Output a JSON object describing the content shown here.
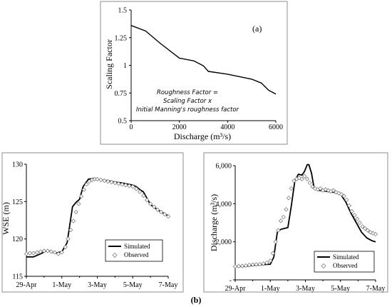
{
  "panel_b_label": "(b)",
  "chart_data": [
    {
      "id": "a",
      "type": "line",
      "panel_label": "(a)",
      "xlabel": "Discharge (m³/s)",
      "ylabel": "Scaling Factor",
      "xlim": [
        0,
        6000
      ],
      "ylim": [
        0.5,
        1.5
      ],
      "xticks": [
        0,
        2000,
        4000,
        6000
      ],
      "xtick_labels": [
        "0",
        "2000",
        "4000",
        "6000"
      ],
      "yticks": [
        0.5,
        0.75,
        1,
        1.25,
        1.5
      ],
      "ytick_labels": [
        "0.5",
        "0.75",
        "1",
        "1.25",
        "1.5"
      ],
      "annotation": [
        "Roughness Factor =",
        "Scaling Factor  x",
        "Initial Manning's roughness factor"
      ],
      "line_color": "#000000",
      "series": [
        {
          "x": [
            0,
            600,
            1200,
            2000,
            2600,
            3000,
            3200,
            4000,
            5000,
            5400,
            5700,
            6000
          ],
          "y": [
            1.36,
            1.31,
            1.2,
            1.065,
            1.04,
            0.995,
            0.945,
            0.92,
            0.875,
            0.84,
            0.775,
            0.74
          ]
        }
      ]
    },
    {
      "id": "b1",
      "type": "line",
      "ylabel": "WSE (m)",
      "xlim": [
        0,
        8
      ],
      "ylim": [
        115,
        130
      ],
      "xticks": [
        0,
        2,
        4,
        6,
        8
      ],
      "xtick_labels": [
        "29-Apr",
        "1-May",
        "3-May",
        "5-May",
        "7-May"
      ],
      "yticks": [
        115,
        120,
        125,
        130
      ],
      "ytick_labels": [
        "115",
        "120",
        "125",
        "130"
      ],
      "legend": [
        "Simulated",
        "Observed"
      ],
      "legend_position": "bottom-right",
      "series": [
        {
          "name": "Simulated",
          "style": "line",
          "color": "#000000",
          "x": [
            0,
            0.4,
            0.8,
            1.2,
            1.6,
            2.0,
            2.3,
            2.6,
            2.8,
            3.0,
            3.2,
            3.5,
            3.8,
            4.2,
            4.6,
            5.0,
            5.4,
            5.8,
            6.0,
            6.2,
            6.4,
            6.6,
            7.0,
            7.4,
            7.7,
            8.0
          ],
          "y": [
            117.6,
            117.6,
            118.0,
            118.5,
            118.1,
            118.3,
            119.5,
            124.3,
            124.9,
            125.3,
            127.0,
            128.0,
            128.1,
            127.9,
            127.8,
            127.6,
            127.5,
            127.3,
            127.2,
            127.0,
            126.6,
            126.3,
            124.6,
            123.9,
            123.5,
            123.1
          ]
        },
        {
          "name": "Observed",
          "style": "marker",
          "color": "#7f7f7f",
          "x": [
            0,
            0.2,
            0.4,
            0.6,
            0.8,
            1.0,
            1.2,
            1.4,
            1.6,
            1.8,
            2.0,
            2.2,
            2.35,
            2.5,
            2.65,
            2.8,
            2.95,
            3.1,
            3.25,
            3.4,
            3.55,
            3.7,
            3.85,
            4.0,
            4.2,
            4.4,
            4.6,
            4.8,
            5.0,
            5.2,
            5.4,
            5.6,
            5.8,
            6.0,
            6.2,
            6.4,
            6.6,
            6.8,
            7.0,
            7.2,
            7.4,
            7.6,
            7.8,
            8.0
          ],
          "y": [
            118.0,
            118.1,
            118.1,
            118.2,
            118.3,
            118.4,
            118.4,
            118.3,
            118.2,
            118.0,
            118.2,
            118.9,
            120.0,
            121.2,
            122.4,
            123.6,
            124.7,
            125.7,
            126.6,
            127.3,
            127.7,
            127.9,
            128.0,
            128.0,
            127.9,
            127.8,
            127.7,
            127.6,
            127.5,
            127.4,
            127.3,
            127.2,
            127.1,
            127.0,
            126.7,
            126.3,
            125.8,
            125.2,
            124.7,
            124.3,
            123.9,
            123.6,
            123.3,
            123.0
          ]
        }
      ]
    },
    {
      "id": "b2",
      "type": "line",
      "ylabel": "Discharge (m³/s)",
      "xlim": [
        0,
        8
      ],
      "ylim": [
        0,
        6000
      ],
      "xticks": [
        0,
        2,
        4,
        6,
        8
      ],
      "xtick_labels": [
        "29-Apr",
        "1-May",
        "3-May",
        "5-May",
        "7-May"
      ],
      "yticks": [
        0,
        2000,
        4000,
        6000
      ],
      "ytick_labels": [
        "-",
        "2,000",
        "4,000",
        "6,000"
      ],
      "legend": [
        "Simulated",
        "Observed"
      ],
      "legend_position": "bottom-right",
      "series": [
        {
          "name": "Simulated",
          "style": "line",
          "color": "#000000",
          "x": [
            0,
            0.5,
            1.0,
            1.5,
            2.0,
            2.2,
            2.4,
            2.6,
            2.8,
            3.0,
            3.2,
            3.4,
            3.6,
            3.8,
            3.95,
            4.1,
            4.2,
            4.35,
            4.5,
            4.8,
            5.2,
            5.6,
            6.0,
            6.3,
            6.6,
            6.9,
            7.2,
            7.5,
            7.8,
            8.0
          ],
          "y": [
            700,
            710,
            760,
            800,
            820,
            1200,
            2500,
            2650,
            2700,
            2750,
            3900,
            5200,
            5550,
            5500,
            5700,
            6050,
            6050,
            5600,
            4800,
            4700,
            4650,
            4600,
            4500,
            4100,
            3500,
            3000,
            2500,
            2200,
            2050,
            2000
          ]
        },
        {
          "name": "Observed",
          "style": "marker",
          "color": "#7f7f7f",
          "x": [
            0,
            0.2,
            0.4,
            0.6,
            0.8,
            1.0,
            1.2,
            1.4,
            1.6,
            1.8,
            2.0,
            2.15,
            2.3,
            2.45,
            2.6,
            2.75,
            2.9,
            3.05,
            3.2,
            3.35,
            3.5,
            3.65,
            3.8,
            3.95,
            4.1,
            4.25,
            4.4,
            4.55,
            4.7,
            4.85,
            5.0,
            5.15,
            5.3,
            5.45,
            5.6,
            5.75,
            5.9,
            6.05,
            6.2,
            6.35,
            6.5,
            6.65,
            6.8,
            6.95,
            7.1,
            7.25,
            7.4,
            7.55,
            7.7,
            7.85,
            8.0
          ],
          "y": [
            700,
            720,
            730,
            750,
            780,
            800,
            810,
            820,
            850,
            900,
            1000,
            1400,
            2000,
            2600,
            3100,
            3300,
            3700,
            4300,
            4800,
            5200,
            5300,
            5350,
            5300,
            5450,
            5300,
            5100,
            4900,
            4800,
            4750,
            4800,
            4700,
            4750,
            4700,
            4650,
            4700,
            4600,
            4550,
            4500,
            4400,
            4200,
            3900,
            3600,
            3400,
            3200,
            3000,
            2800,
            2700,
            2600,
            2500,
            2450,
            2400
          ]
        }
      ]
    }
  ]
}
